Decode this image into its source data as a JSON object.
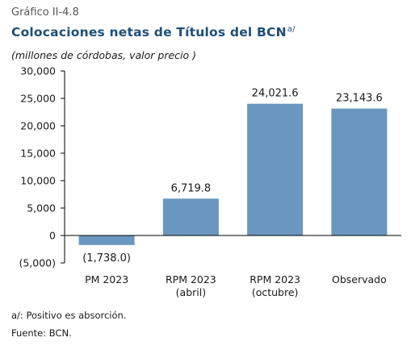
{
  "figure_label": "Gráfico II-4.8",
  "footnote": "a/: Positivo es absorción.",
  "source": "Fuente: BCN.",
  "chart_data": {
    "type": "bar",
    "title": "Colocaciones netas de Títulos del BCN",
    "title_superscript": "a/",
    "subtitle": "(millones de córdobas, valor precio )",
    "categories": [
      [
        "PM 2023"
      ],
      [
        "RPM 2023",
        "(abril)"
      ],
      [
        "RPM 2023",
        "(octubre)"
      ],
      [
        "Observado"
      ]
    ],
    "values": [
      -1738.0,
      6719.8,
      24021.6,
      23143.6
    ],
    "value_labels": [
      "(1,738.0)",
      "6,719.8",
      "24,021.6",
      "23,143.6"
    ],
    "ylim": [
      -5000,
      30000
    ],
    "yticks": [
      -5000,
      0,
      5000,
      10000,
      15000,
      20000,
      25000,
      30000
    ],
    "ytick_labels": [
      "(5,000)",
      "0",
      "5,000",
      "10,000",
      "15,000",
      "20,000",
      "25,000",
      "30,000"
    ],
    "bar_color": "#6a97bf",
    "grid": false,
    "legend": "none"
  }
}
